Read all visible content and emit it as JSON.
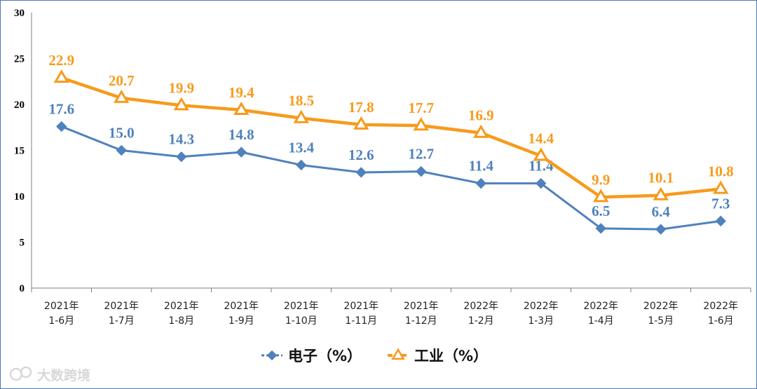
{
  "chart_data": {
    "type": "line",
    "title": "",
    "xlabel": "",
    "ylabel": "",
    "ylim": [
      0,
      30
    ],
    "yticks": [
      0,
      5,
      10,
      15,
      20,
      25,
      30
    ],
    "categories": [
      [
        "2021年",
        "1-6月"
      ],
      [
        "2021年",
        "1-7月"
      ],
      [
        "2021年",
        "1-8月"
      ],
      [
        "2021年",
        "1-9月"
      ],
      [
        "2021年",
        "1-10月"
      ],
      [
        "2021年",
        "1-11月"
      ],
      [
        "2021年",
        "1-12月"
      ],
      [
        "2022年",
        "1-2月"
      ],
      [
        "2022年",
        "1-3月"
      ],
      [
        "2022年",
        "1-4月"
      ],
      [
        "2022年",
        "1-5月"
      ],
      [
        "2022年",
        "1-6月"
      ]
    ],
    "series": [
      {
        "name": "电子（%）",
        "marker": "diamond",
        "color": "#4f81bd",
        "values": [
          17.6,
          15.0,
          14.3,
          14.8,
          13.4,
          12.6,
          12.7,
          11.4,
          11.4,
          6.5,
          6.4,
          7.3
        ],
        "labels": [
          "17.6",
          "15.0",
          "14.3",
          "14.8",
          "13.4",
          "12.6",
          "12.7",
          "11.4",
          "11.4",
          "6.5",
          "6.4",
          "7.3"
        ]
      },
      {
        "name": "工业（%）",
        "marker": "triangle",
        "color": "#f79a1c",
        "values": [
          22.9,
          20.7,
          19.9,
          19.4,
          18.5,
          17.8,
          17.7,
          16.9,
          14.4,
          9.9,
          10.1,
          10.8
        ],
        "labels": [
          "22.9",
          "20.7",
          "19.9",
          "19.4",
          "18.5",
          "17.8",
          "17.7",
          "16.9",
          "14.4",
          "9.9",
          "10.1",
          "10.8"
        ]
      }
    ],
    "legend": "bottom-center"
  },
  "watermark": "大数跨境",
  "colors": {
    "border": "#4a78b8",
    "axis": "#7f7f7f"
  }
}
